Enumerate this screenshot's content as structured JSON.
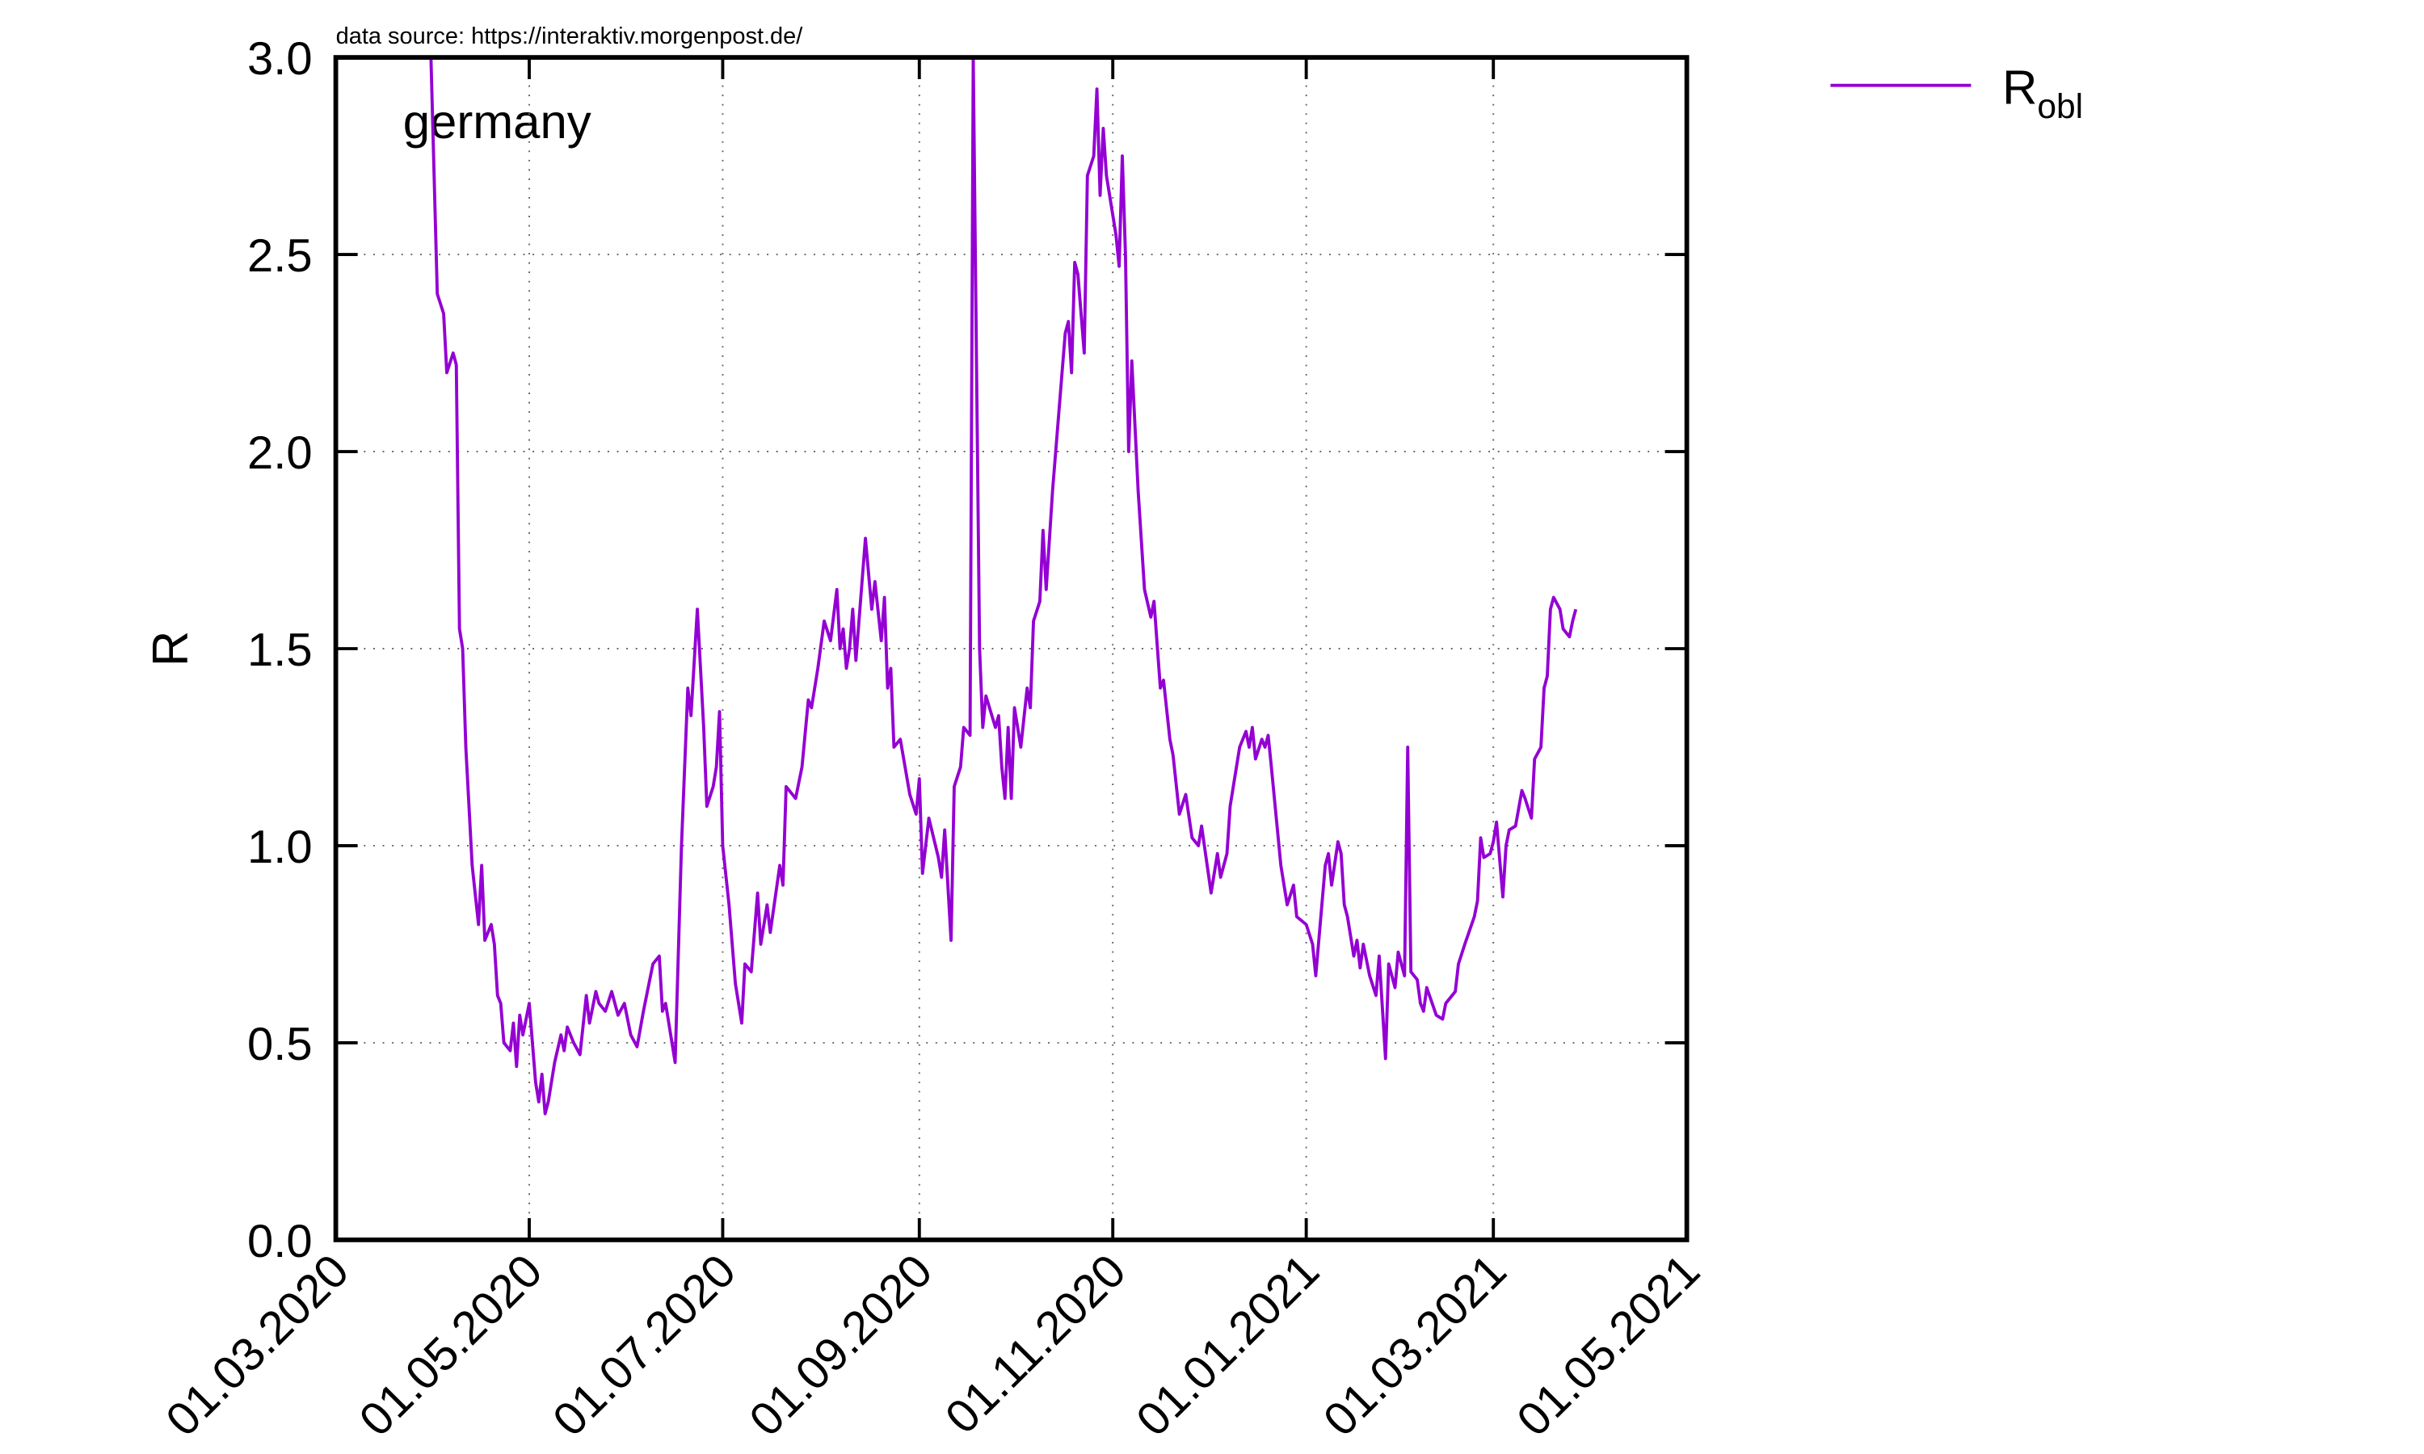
{
  "chart_data": {
    "type": "line",
    "source": "data source: https://interaktiv.morgenpost.de/",
    "title": "germany",
    "y_label": "R",
    "x": [
      "31.03.2020",
      "02.04.2020",
      "04.04.2020",
      "05.04.2020",
      "07.04.2020",
      "08.04.2020",
      "09.04.2020",
      "10.04.2020",
      "11.04.2020",
      "13.04.2020",
      "15.04.2020",
      "16.04.2020",
      "17.04.2020",
      "19.04.2020",
      "20.04.2020",
      "21.04.2020",
      "22.04.2020",
      "23.04.2020",
      "25.04.2020",
      "26.04.2020",
      "27.04.2020",
      "28.04.2020",
      "29.04.2020",
      "01.05.2020",
      "02.05.2020",
      "03.05.2020",
      "04.05.2020",
      "05.05.2020",
      "06.05.2020",
      "07.05.2020",
      "09.05.2020",
      "11.05.2020",
      "12.05.2020",
      "13.05.2020",
      "15.05.2020",
      "17.05.2020",
      "19.05.2020",
      "20.05.2020",
      "22.05.2020",
      "23.05.2020",
      "25.05.2020",
      "27.05.2020",
      "29.05.2020",
      "31.05.2020",
      "02.06.2020",
      "04.06.2020",
      "06.06.2020",
      "09.06.2020",
      "11.06.2020",
      "12.06.2020",
      "13.06.2020",
      "16.06.2020",
      "18.06.2020",
      "20.06.2020",
      "21.06.2020",
      "23.06.2020",
      "25.06.2020",
      "26.06.2020",
      "28.06.2020",
      "29.06.2020",
      "30.06.2020",
      "01.07.2020",
      "03.07.2020",
      "05.07.2020",
      "07.07.2020",
      "08.07.2020",
      "10.07.2020",
      "12.07.2020",
      "13.07.2020",
      "15.07.2020",
      "16.07.2020",
      "19.07.2020",
      "20.07.2020",
      "21.07.2020",
      "24.07.2020",
      "26.07.2020",
      "28.07.2020",
      "29.07.2020",
      "31.07.2020",
      "02.08.2020",
      "04.08.2020",
      "06.08.2020",
      "07.08.2020",
      "08.08.2020",
      "09.08.2020",
      "10.08.2020",
      "11.08.2020",
      "12.08.2020",
      "15.08.2020",
      "17.08.2020",
      "18.08.2020",
      "20.08.2020",
      "21.08.2020",
      "22.08.2020",
      "23.08.2020",
      "24.08.2020",
      "26.08.2020",
      "29.08.2020",
      "31.08.2020",
      "01.09.2020",
      "02.09.2020",
      "04.09.2020",
      "07.09.2020",
      "08.09.2020",
      "09.09.2020",
      "11.09.2020",
      "12.09.2020",
      "14.09.2020",
      "15.09.2020",
      "17.09.2020",
      "18.09.2020",
      "20.09.2020",
      "21.09.2020",
      "22.09.2020",
      "25.09.2020",
      "26.09.2020",
      "27.09.2020",
      "28.09.2020",
      "29.09.2020",
      "30.09.2020",
      "01.10.2020",
      "03.10.2020",
      "05.10.2020",
      "06.10.2020",
      "07.10.2020",
      "09.10.2020",
      "10.10.2020",
      "11.10.2020",
      "13.10.2020",
      "15.10.2020",
      "17.10.2020",
      "18.10.2020",
      "19.10.2020",
      "20.10.2020",
      "21.10.2020",
      "23.10.2020",
      "24.10.2020",
      "26.10.2020",
      "27.10.2020",
      "28.10.2020",
      "29.10.2020",
      "30.10.2020",
      "02.11.2020",
      "03.11.2020",
      "04.11.2020",
      "05.11.2020",
      "06.11.2020",
      "07.11.2020",
      "09.11.2020",
      "11.11.2020",
      "13.11.2020",
      "14.11.2020",
      "16.11.2020",
      "17.11.2020",
      "19.11.2020",
      "20.11.2020",
      "22.11.2020",
      "24.11.2020",
      "26.11.2020",
      "28.11.2020",
      "29.11.2020",
      "02.12.2020",
      "04.12.2020",
      "05.12.2020",
      "07.12.2020",
      "08.12.2020",
      "11.12.2020",
      "13.12.2020",
      "14.12.2020",
      "15.12.2020",
      "16.12.2020",
      "18.12.2020",
      "19.12.2020",
      "20.12.2020",
      "21.12.2020",
      "24.12.2020",
      "26.12.2020",
      "28.12.2020",
      "29.12.2020",
      "01.01.2021",
      "03.01.2021",
      "04.01.2021",
      "07.01.2021",
      "08.01.2021",
      "09.01.2021",
      "11.01.2021",
      "12.01.2021",
      "13.01.2021",
      "14.01.2021",
      "16.01.2021",
      "17.01.2021",
      "18.01.2021",
      "19.01.2021",
      "21.01.2021",
      "23.01.2021",
      "24.01.2021",
      "26.01.2021",
      "27.01.2021",
      "29.01.2021",
      "30.01.2021",
      "01.02.2021",
      "02.02.2021",
      "03.02.2021",
      "05.02.2021",
      "06.02.2021",
      "07.02.2021",
      "08.02.2021",
      "11.02.2021",
      "13.02.2021",
      "14.02.2021",
      "17.02.2021",
      "18.02.2021",
      "20.02.2021",
      "23.02.2021",
      "24.02.2021",
      "25.02.2021",
      "26.02.2021",
      "28.02.2021",
      "01.03.2021",
      "02.03.2021",
      "04.03.2021",
      "05.03.2021",
      "06.03.2021",
      "08.03.2021",
      "10.03.2021",
      "11.03.2021",
      "13.03.2021",
      "14.03.2021",
      "16.03.2021",
      "17.03.2021",
      "18.03.2021",
      "19.03.2021",
      "20.03.2021",
      "22.03.2021",
      "23.03.2021",
      "25.03.2021",
      "26.03.2021",
      "27.03.2021"
    ],
    "series": [
      {
        "name": "R",
        "subscript": "obl",
        "color": "#9400d3",
        "values": [
          3.0,
          2.4,
          2.35,
          2.2,
          2.25,
          2.22,
          1.55,
          1.5,
          1.25,
          0.95,
          0.8,
          0.95,
          0.76,
          0.8,
          0.75,
          0.62,
          0.6,
          0.5,
          0.48,
          0.55,
          0.44,
          0.57,
          0.52,
          0.6,
          0.5,
          0.4,
          0.35,
          0.42,
          0.32,
          0.35,
          0.45,
          0.52,
          0.48,
          0.54,
          0.5,
          0.47,
          0.62,
          0.55,
          0.63,
          0.6,
          0.58,
          0.63,
          0.57,
          0.6,
          0.52,
          0.49,
          0.58,
          0.7,
          0.72,
          0.58,
          0.6,
          0.45,
          1.0,
          1.4,
          1.33,
          1.6,
          1.3,
          1.1,
          1.15,
          1.2,
          1.34,
          1.0,
          0.85,
          0.65,
          0.55,
          0.7,
          0.68,
          0.88,
          0.75,
          0.85,
          0.78,
          0.95,
          0.9,
          1.15,
          1.12,
          1.2,
          1.37,
          1.35,
          1.45,
          1.57,
          1.52,
          1.65,
          1.5,
          1.55,
          1.45,
          1.5,
          1.6,
          1.47,
          1.78,
          1.6,
          1.67,
          1.52,
          1.63,
          1.4,
          1.45,
          1.25,
          1.27,
          1.13,
          1.08,
          1.17,
          0.93,
          1.07,
          0.97,
          0.92,
          1.04,
          0.76,
          1.15,
          1.2,
          1.3,
          1.28,
          3.0,
          1.5,
          1.3,
          1.38,
          1.3,
          1.33,
          1.2,
          1.12,
          1.3,
          1.12,
          1.35,
          1.25,
          1.4,
          1.35,
          1.57,
          1.62,
          1.8,
          1.65,
          1.9,
          2.1,
          2.3,
          2.33,
          2.2,
          2.48,
          2.45,
          2.25,
          2.7,
          2.75,
          2.92,
          2.65,
          2.82,
          2.7,
          2.55,
          2.47,
          2.75,
          2.5,
          2.0,
          2.23,
          1.9,
          1.65,
          1.58,
          1.62,
          1.4,
          1.42,
          1.27,
          1.23,
          1.08,
          1.13,
          1.02,
          1.0,
          1.05,
          0.88,
          0.98,
          0.92,
          0.98,
          1.1,
          1.25,
          1.29,
          1.25,
          1.3,
          1.22,
          1.27,
          1.25,
          1.28,
          1.2,
          0.95,
          0.85,
          0.9,
          0.82,
          0.8,
          0.75,
          0.67,
          0.95,
          0.98,
          0.9,
          1.01,
          0.98,
          0.85,
          0.82,
          0.72,
          0.76,
          0.69,
          0.75,
          0.67,
          0.62,
          0.72,
          0.46,
          0.7,
          0.64,
          0.73,
          0.67,
          1.25,
          0.68,
          0.66,
          0.6,
          0.58,
          0.64,
          0.57,
          0.56,
          0.6,
          0.63,
          0.7,
          0.75,
          0.82,
          0.86,
          1.02,
          0.97,
          0.98,
          1.01,
          1.06,
          0.87,
          1.0,
          1.04,
          1.05,
          1.14,
          1.12,
          1.07,
          1.22,
          1.25,
          1.4,
          1.43,
          1.6,
          1.63,
          1.6,
          1.55,
          1.53,
          1.57,
          1.6
        ]
      }
    ],
    "xlim": [
      "01.03.2020",
      "01.05.2021"
    ],
    "xticks": [
      "01.03.2020",
      "01.05.2020",
      "01.07.2020",
      "01.09.2020",
      "01.11.2020",
      "01.01.2021",
      "01.03.2021",
      "01.05.2021"
    ],
    "ylim": [
      0,
      3
    ],
    "yticks": [
      {
        "value": 0,
        "label": "0.0"
      },
      0.5,
      {
        "value": 1,
        "label": "1.0"
      },
      1.5,
      {
        "value": 2,
        "label": "2.0"
      },
      2.5,
      {
        "value": 3,
        "label": "3.0"
      }
    ],
    "grid": true,
    "legend": "outside-right"
  }
}
